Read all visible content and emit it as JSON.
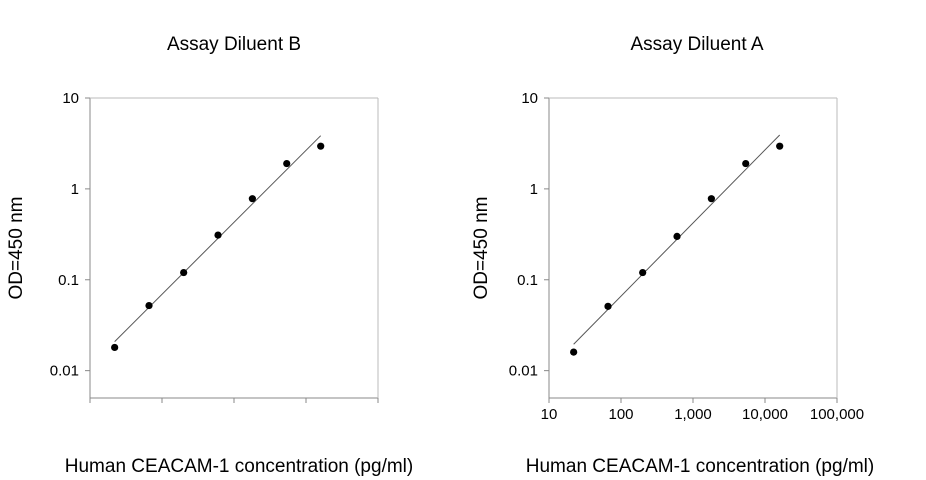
{
  "chart_data": [
    {
      "type": "scatter",
      "title": "Assay Diluent B",
      "xlabel": "Human CEACAM-1 concentration (pg/ml)",
      "ylabel": "OD=450 nm",
      "xscale": "log",
      "yscale": "log",
      "xlim": [
        10,
        100000
      ],
      "ylim": [
        0.005,
        10
      ],
      "show_x_tick_labels": false,
      "x_ticks": [
        10,
        100,
        1000,
        10000,
        100000
      ],
      "y_ticks": [
        0.01,
        0.1,
        1,
        10
      ],
      "y_tick_labels": [
        "0.01",
        "0.1",
        "1",
        "10"
      ],
      "grid": false,
      "trendline": true,
      "series": [
        {
          "x": [
            22,
            66,
            200,
            600,
            1800,
            5400,
            16000
          ],
          "y": [
            0.018,
            0.052,
            0.12,
            0.31,
            0.78,
            1.9,
            2.95
          ]
        }
      ]
    },
    {
      "type": "scatter",
      "title": "Assay Diluent A",
      "xlabel": "Human CEACAM-1 concentration (pg/ml)",
      "ylabel": "OD=450 nm",
      "xscale": "log",
      "yscale": "log",
      "xlim": [
        10,
        100000
      ],
      "ylim": [
        0.005,
        10
      ],
      "show_x_tick_labels": true,
      "x_ticks": [
        10,
        100,
        1000,
        10000,
        100000
      ],
      "x_tick_labels": [
        "10",
        "100",
        "1,000",
        "10,000",
        "100,000"
      ],
      "y_ticks": [
        0.01,
        0.1,
        1,
        10
      ],
      "y_tick_labels": [
        "0.01",
        "0.1",
        "1",
        "10"
      ],
      "grid": false,
      "trendline": true,
      "series": [
        {
          "x": [
            22,
            66,
            200,
            600,
            1800,
            5400,
            16000
          ],
          "y": [
            0.016,
            0.051,
            0.12,
            0.3,
            0.78,
            1.9,
            2.95
          ]
        }
      ]
    }
  ]
}
